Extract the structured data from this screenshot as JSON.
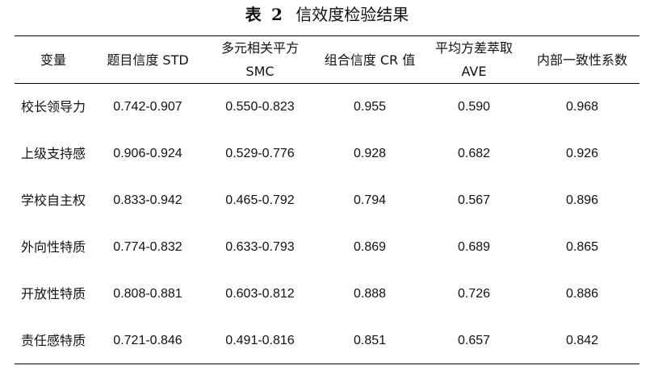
{
  "caption": {
    "label": "表",
    "number": "2",
    "title": "信效度检验结果"
  },
  "headers": [
    "变量",
    "题目信度 STD",
    "多元相关平方 SMC",
    "组合信度 CR 值",
    "平均方差萃取 AVE",
    "内部一致性系数"
  ],
  "rows": [
    {
      "name": "校长领导力",
      "std": "0.742-0.907",
      "smc": "0.550-0.823",
      "cr": "0.955",
      "ave": "0.590",
      "alpha": "0.968"
    },
    {
      "name": "上级支持感",
      "std": "0.906-0.924",
      "smc": "0.529-0.776",
      "cr": "0.928",
      "ave": "0.682",
      "alpha": "0.926"
    },
    {
      "name": "学校自主权",
      "std": "0.833-0.942",
      "smc": "0.465-0.792",
      "cr": "0.794",
      "ave": "0.567",
      "alpha": "0.896"
    },
    {
      "name": "外向性特质",
      "std": "0.774-0.832",
      "smc": "0.633-0.793",
      "cr": "0.869",
      "ave": "0.689",
      "alpha": "0.865"
    },
    {
      "name": "开放性特质",
      "std": "0.808-0.881",
      "smc": "0.603-0.812",
      "cr": "0.888",
      "ave": "0.726",
      "alpha": "0.886"
    },
    {
      "name": "责任感特质",
      "std": "0.721-0.846",
      "smc": "0.491-0.816",
      "cr": "0.851",
      "ave": "0.657",
      "alpha": "0.842"
    }
  ]
}
